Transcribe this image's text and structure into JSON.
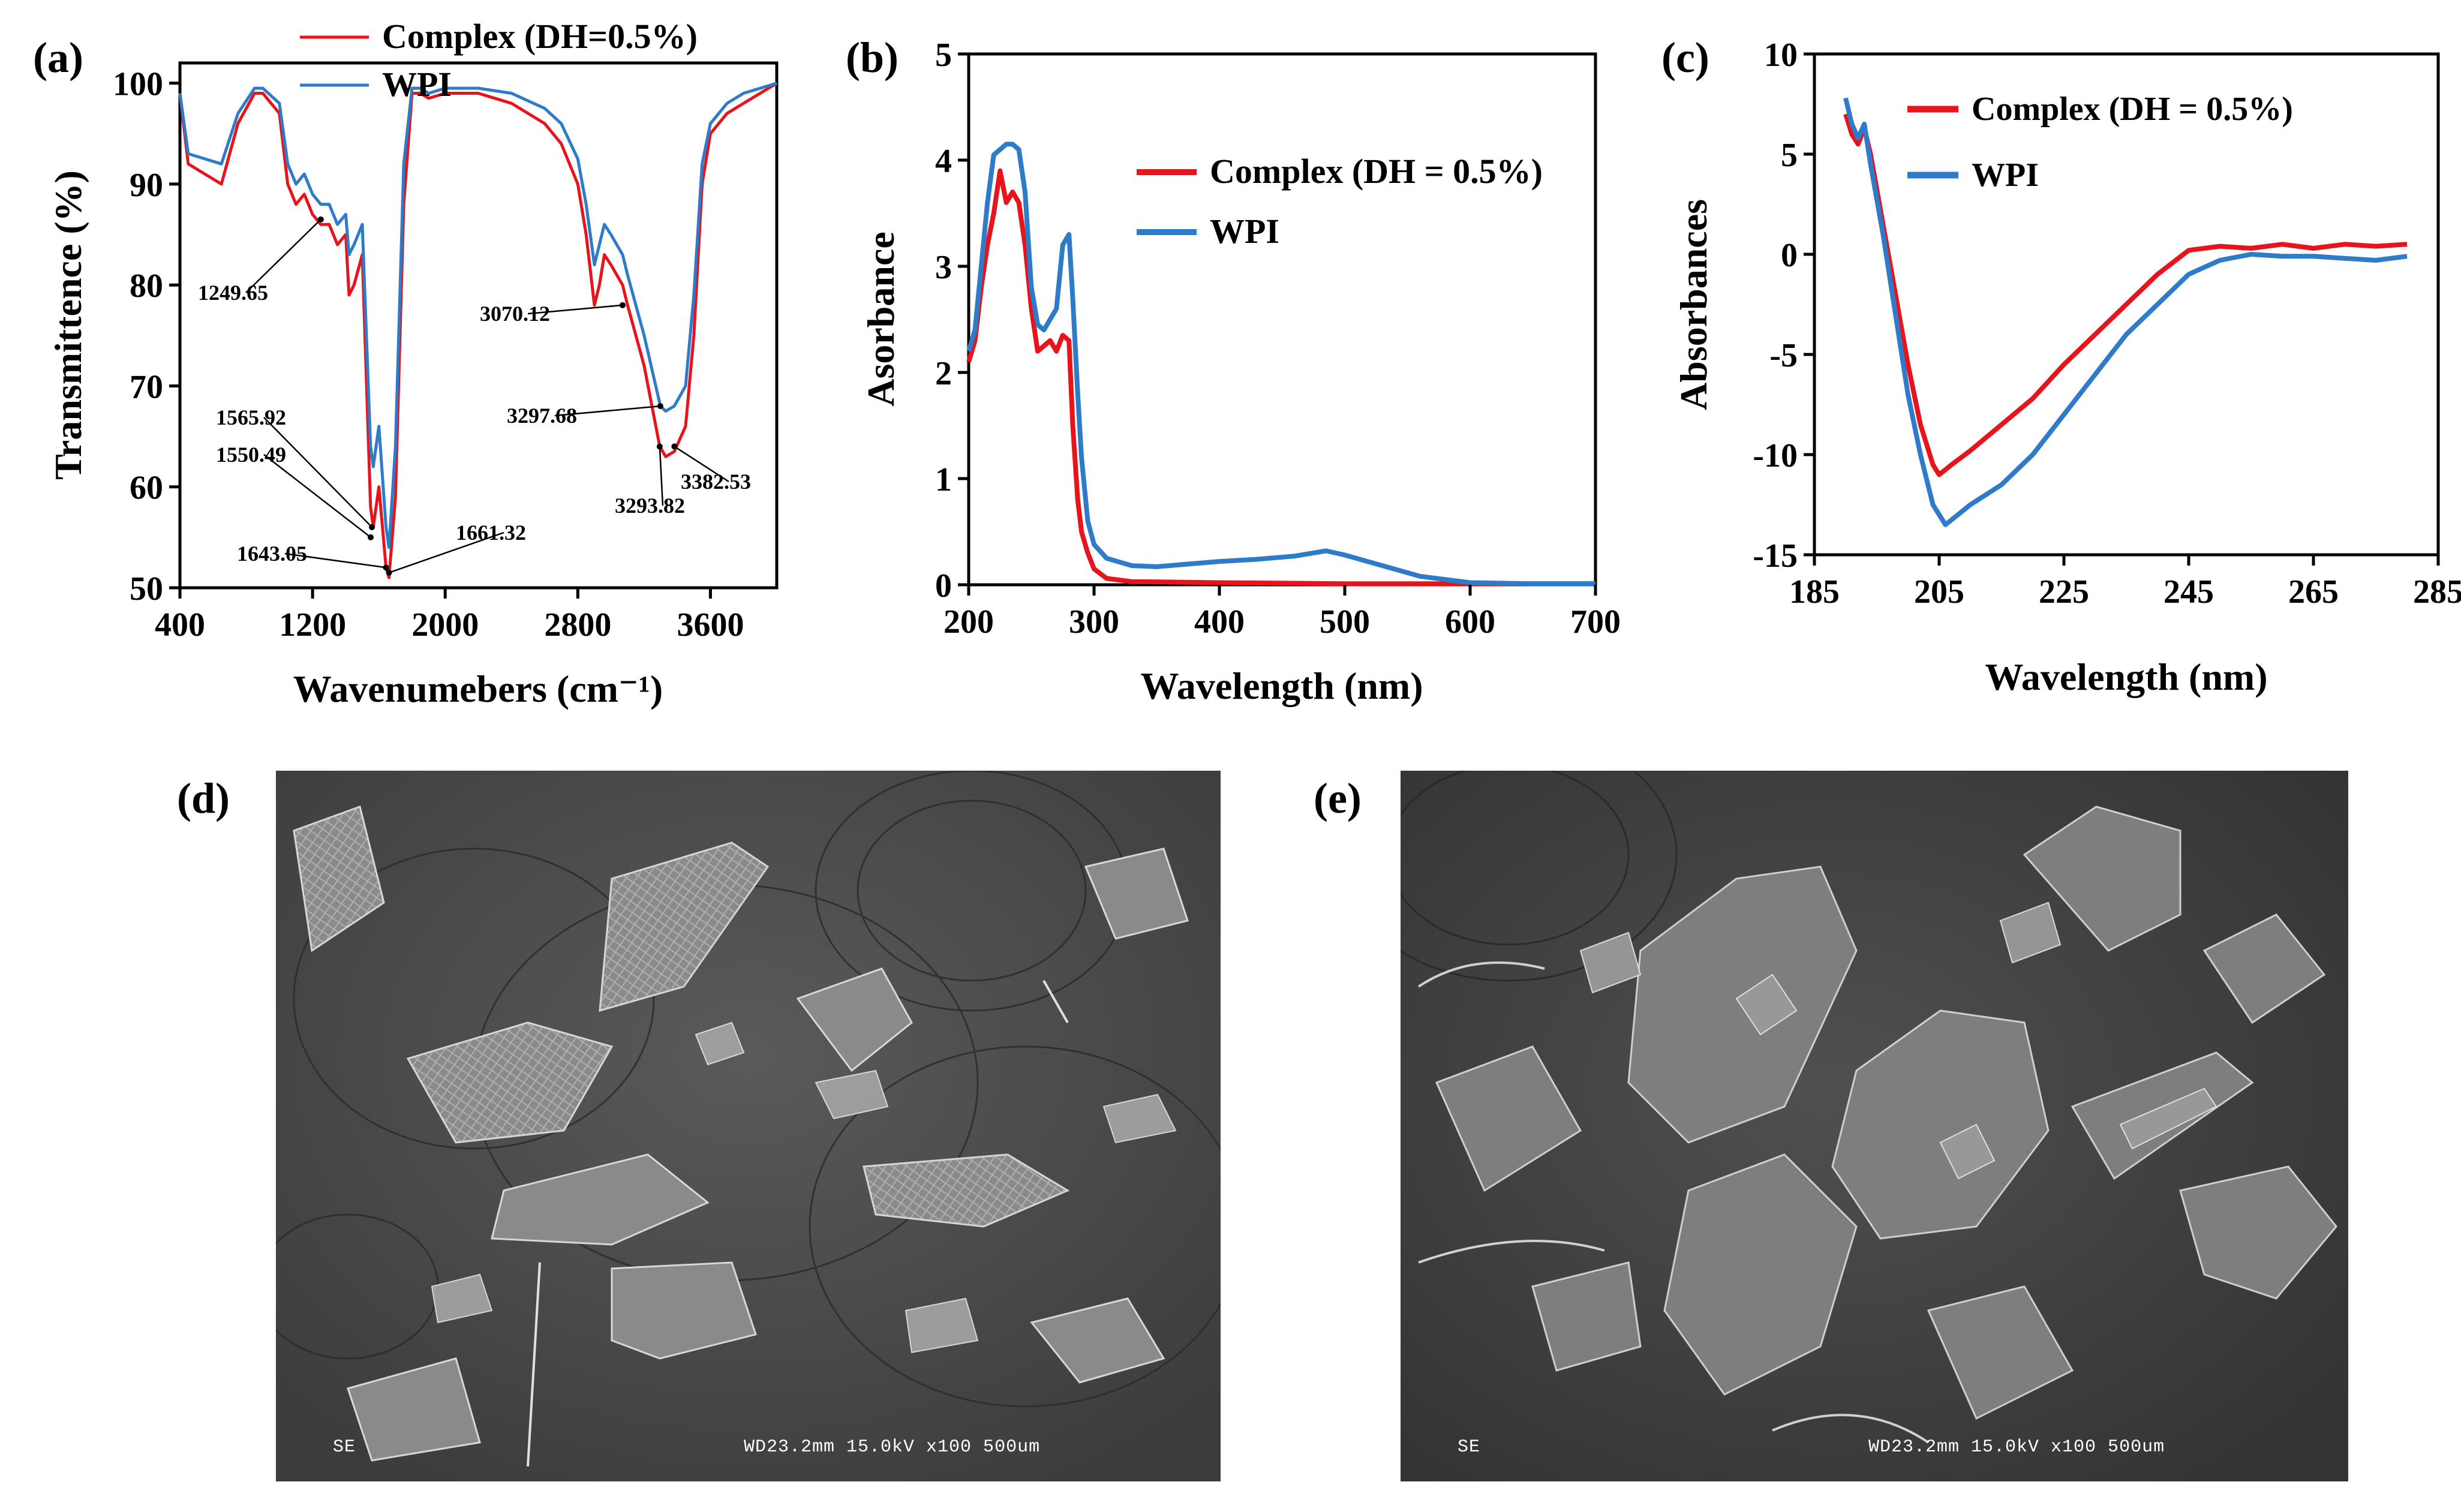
{
  "panels": {
    "a": {
      "label": "(a)",
      "ylabel": "Transmittence (%)",
      "xlabel": "Wavenumebers (cm⁻¹)"
    },
    "b": {
      "label": "(b)",
      "ylabel": "Asorbance",
      "xlabel": "Wavelength (nm)"
    },
    "c": {
      "label": "(c)",
      "ylabel": "Absorbances",
      "xlabel": "Wavelength (nm)"
    },
    "d": {
      "label": "(d)",
      "info_left": "SE",
      "info_right": "WD23.2mm 15.0kV x100   500um"
    },
    "e": {
      "label": "(e)",
      "info_left": "SE",
      "info_right": "WD23.2mm 15.0kV x100   500um"
    }
  },
  "colors": {
    "complex": "#e8141c",
    "wpi": "#2e7bc9"
  },
  "chart_data": [
    {
      "id": "a",
      "type": "line",
      "xlabel": "Wavenumebers (cm⁻¹)",
      "ylabel": "Transmittence (%)",
      "xlim": [
        400,
        4000
      ],
      "ylim": [
        50,
        102
      ],
      "xticks": [
        400,
        1200,
        2000,
        2800,
        3600
      ],
      "yticks": [
        50,
        60,
        70,
        80,
        90,
        100
      ],
      "legend": "top-center",
      "series": [
        {
          "name": "Complex (DH=0.5%)",
          "color": "#e8141c",
          "x": [
            400,
            450,
            550,
            650,
            750,
            850,
            900,
            1000,
            1050,
            1100,
            1150,
            1200,
            1249,
            1300,
            1350,
            1400,
            1420,
            1450,
            1500,
            1550,
            1566,
            1600,
            1643,
            1661,
            1700,
            1750,
            1800,
            1850,
            1900,
            2000,
            2200,
            2400,
            2600,
            2700,
            2800,
            2850,
            2900,
            2930,
            2960,
            3000,
            3070,
            3100,
            3200,
            3294,
            3330,
            3382,
            3450,
            3500,
            3550,
            3600,
            3700,
            3800,
            3900,
            4000
          ],
          "y": [
            99,
            92,
            91,
            90,
            96,
            99,
            99,
            97,
            90,
            88,
            89,
            87,
            86,
            86,
            84,
            85,
            79,
            80,
            83,
            58,
            56,
            60,
            52,
            51,
            59,
            88,
            99,
            99,
            98.5,
            99,
            99,
            98,
            96,
            94,
            90,
            85,
            78,
            80,
            83,
            82,
            80,
            78,
            72,
            64,
            63,
            63.5,
            66,
            75,
            90,
            95,
            97,
            98,
            99,
            100
          ]
        },
        {
          "name": "WPI",
          "color": "#2e7bc9",
          "x": [
            400,
            450,
            550,
            650,
            750,
            850,
            900,
            1000,
            1050,
            1100,
            1150,
            1200,
            1249,
            1300,
            1350,
            1400,
            1420,
            1450,
            1500,
            1550,
            1566,
            1600,
            1643,
            1661,
            1700,
            1750,
            1800,
            1850,
            1900,
            2000,
            2200,
            2400,
            2600,
            2700,
            2800,
            2850,
            2900,
            2930,
            2960,
            3000,
            3070,
            3100,
            3200,
            3298,
            3330,
            3382,
            3450,
            3500,
            3550,
            3600,
            3700,
            3800,
            3900,
            4000
          ],
          "y": [
            99,
            93,
            92.5,
            92,
            97,
            99.5,
            99.5,
            98,
            92,
            90,
            91,
            89,
            88,
            88,
            86,
            87,
            83,
            84,
            86,
            64,
            62,
            66,
            56,
            54,
            64,
            92,
            99.5,
            99.5,
            99,
            99.5,
            99.5,
            99,
            97.5,
            96,
            92.5,
            88,
            82,
            84,
            86,
            85,
            83,
            81,
            75,
            68,
            67.5,
            68,
            70,
            79,
            92,
            96,
            98,
            99,
            99.5,
            100
          ]
        }
      ],
      "annotations": [
        {
          "text": "1249.65",
          "x": 1249.65
        },
        {
          "text": "1565.92",
          "x": 1565.92
        },
        {
          "text": "1550.49",
          "x": 1550.49
        },
        {
          "text": "1643.05",
          "x": 1643.05
        },
        {
          "text": "1661.32",
          "x": 1661.32
        },
        {
          "text": "3070.12",
          "x": 3070.12
        },
        {
          "text": "3297.68",
          "x": 3297.68
        },
        {
          "text": "3293.82",
          "x": 3293.82
        },
        {
          "text": "3382.53",
          "x": 3382.53
        }
      ]
    },
    {
      "id": "b",
      "type": "line",
      "xlabel": "Wavelength (nm)",
      "ylabel": "Asorbance",
      "xlim": [
        200,
        700
      ],
      "ylim": [
        0,
        5
      ],
      "xticks": [
        200,
        300,
        400,
        500,
        600,
        700
      ],
      "yticks": [
        0,
        1,
        2,
        3,
        4,
        5
      ],
      "legend": "top-right",
      "series": [
        {
          "name": "Complex (DH = 0.5%)",
          "color": "#e8141c",
          "x": [
            200,
            205,
            210,
            215,
            220,
            225,
            230,
            235,
            240,
            245,
            250,
            255,
            260,
            265,
            270,
            275,
            280,
            283,
            287,
            290,
            295,
            300,
            310,
            330,
            400,
            500,
            600,
            700
          ],
          "y": [
            2.1,
            2.3,
            2.8,
            3.2,
            3.5,
            3.9,
            3.6,
            3.7,
            3.6,
            3.2,
            2.6,
            2.2,
            2.25,
            2.3,
            2.2,
            2.35,
            2.3,
            1.5,
            0.8,
            0.5,
            0.3,
            0.15,
            0.06,
            0.03,
            0.02,
            0.01,
            0.01,
            0.01
          ]
        },
        {
          "name": "WPI",
          "color": "#2e7bc9",
          "x": [
            200,
            205,
            210,
            215,
            220,
            225,
            230,
            235,
            240,
            245,
            250,
            255,
            260,
            265,
            270,
            275,
            280,
            283,
            287,
            290,
            295,
            300,
            310,
            330,
            350,
            400,
            430,
            460,
            485,
            500,
            530,
            560,
            600,
            650,
            700
          ],
          "y": [
            2.2,
            2.4,
            3.0,
            3.6,
            4.05,
            4.1,
            4.15,
            4.15,
            4.1,
            3.7,
            2.8,
            2.45,
            2.4,
            2.5,
            2.6,
            3.2,
            3.3,
            2.7,
            1.8,
            1.2,
            0.6,
            0.38,
            0.25,
            0.18,
            0.17,
            0.22,
            0.24,
            0.27,
            0.32,
            0.28,
            0.18,
            0.08,
            0.02,
            0.01,
            0.01
          ]
        }
      ]
    },
    {
      "id": "c",
      "type": "line",
      "xlabel": "Wavelength (nm)",
      "ylabel": "Absorbances",
      "xlim": [
        185,
        285
      ],
      "ylim": [
        -15,
        10
      ],
      "xticks": [
        185,
        205,
        225,
        245,
        265,
        285
      ],
      "yticks": [
        -15,
        -10,
        -5,
        0,
        5,
        10
      ],
      "legend": "top-right",
      "series": [
        {
          "name": "Complex (DH = 0.5%)",
          "color": "#e8141c",
          "x": [
            190,
            191,
            192,
            193,
            194,
            196,
            198,
            200,
            202,
            204,
            205,
            207,
            210,
            215,
            220,
            225,
            230,
            235,
            240,
            245,
            250,
            255,
            260,
            265,
            270,
            275,
            280
          ],
          "y": [
            7,
            6,
            5.5,
            6.3,
            5,
            1.5,
            -2,
            -5.5,
            -8.5,
            -10.5,
            -11,
            -10.5,
            -9.8,
            -8.5,
            -7.2,
            -5.5,
            -4,
            -2.5,
            -1,
            0.2,
            0.4,
            0.3,
            0.5,
            0.3,
            0.5,
            0.4,
            0.5
          ]
        },
        {
          "name": "WPI",
          "color": "#2e7bc9",
          "x": [
            190,
            191,
            192,
            193,
            194,
            196,
            198,
            200,
            202,
            204,
            206,
            208,
            210,
            215,
            220,
            225,
            230,
            235,
            240,
            245,
            250,
            255,
            260,
            265,
            270,
            275,
            280
          ],
          "y": [
            7.8,
            6.5,
            5.8,
            6.5,
            4.5,
            1,
            -3,
            -7,
            -10,
            -12.5,
            -13.5,
            -13,
            -12.5,
            -11.5,
            -10,
            -8,
            -6,
            -4,
            -2.5,
            -1,
            -0.3,
            0,
            -0.1,
            -0.1,
            -0.2,
            -0.3,
            -0.1
          ]
        }
      ]
    }
  ]
}
